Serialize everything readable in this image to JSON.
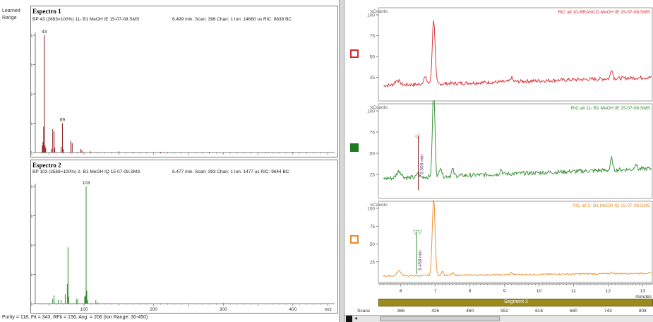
{
  "left": {
    "side_labels": [
      "Learned",
      "Range"
    ],
    "spectrum1": {
      "title": "Espectro 1",
      "info": "BP 43 (2693=100%) 11- B1 MeOH IE 15-07-08.SMS",
      "info2": "6.499 min. Scan: 396 Chan: 1 Ion: 14660 us RIC: 8838 BC",
      "peak_labels": [
        {
          "text": "43",
          "x": 43
        },
        {
          "text": "69",
          "x": 69
        }
      ],
      "y_ticks": [
        "100%",
        "75%",
        "50%",
        "25%",
        "0%"
      ],
      "peaks": [
        [
          40,
          6
        ],
        [
          41,
          9
        ],
        [
          42,
          22
        ],
        [
          43,
          100
        ],
        [
          44,
          6
        ],
        [
          45,
          4
        ],
        [
          53,
          3
        ],
        [
          55,
          20
        ],
        [
          57,
          18
        ],
        [
          58,
          4
        ],
        [
          67,
          5
        ],
        [
          69,
          25
        ],
        [
          70,
          3
        ],
        [
          81,
          10
        ],
        [
          83,
          8
        ],
        [
          95,
          3
        ],
        [
          97,
          2
        ],
        [
          109,
          1
        ],
        [
          150,
          1
        ],
        [
          172,
          0.5
        ],
        [
          210,
          0.5
        ],
        [
          280,
          0.5
        ],
        [
          365,
          0.5
        ],
        [
          400,
          0.5
        ]
      ],
      "color": "#8b1a1a"
    },
    "spectrum2": {
      "title": "Espectro 2",
      "info": "BP 103 (3569=100%) 2- B1 MeOH IQ 15-07-08.SMS",
      "info2": "6.477 min. Scan: 393 Chan: 1 Ion: 1477 us RIC: 9644 BC",
      "peak_labels": [
        {
          "text": "103",
          "x": 103
        }
      ],
      "y_ticks": [
        "100%",
        "75%",
        "50%",
        "25%",
        "0%"
      ],
      "x_ticks": [
        "100",
        "200",
        "300",
        "400"
      ],
      "x_unit": "m/z",
      "peaks": [
        [
          55,
          4
        ],
        [
          57,
          7
        ],
        [
          63,
          3
        ],
        [
          67,
          3
        ],
        [
          73,
          8
        ],
        [
          76,
          17
        ],
        [
          77,
          48
        ],
        [
          78,
          6
        ],
        [
          89,
          4
        ],
        [
          91,
          4
        ],
        [
          101,
          6
        ],
        [
          102,
          7
        ],
        [
          103,
          100
        ],
        [
          104,
          11
        ],
        [
          105,
          3
        ],
        [
          117,
          3
        ],
        [
          120,
          1
        ],
        [
          300,
          0.5
        ]
      ],
      "color": "#2e8b2e"
    },
    "footer": "Purity = 118, Fit = 343, RFit = 156, Avg. = 206 (Ion Range: 30-450)"
  },
  "right": {
    "y_label": "kCounts",
    "y_ticks": [
      "100",
      "75",
      "50",
      "25"
    ],
    "traces": [
      {
        "title": "RIC all 10-BRANCO MeOH IE 15-07-08.SMS",
        "color": "#d9262c",
        "swatch": "hollow",
        "baseline": 15,
        "noise": 2.2,
        "drift": 10,
        "peaks": [
          [
            5.9,
            6,
            0.07
          ],
          [
            6.7,
            8,
            0.05
          ],
          [
            6.95,
            78,
            0.04
          ],
          [
            9.2,
            5,
            0.03
          ],
          [
            12.1,
            12,
            0.03
          ]
        ]
      },
      {
        "title": "RIC all 11- B1 MeOH IE 15-07-08.SMS",
        "color": "#2e8b2e",
        "swatch": "filled",
        "marker_label": "6.506 min",
        "marker_time": 6.506,
        "marker_symbol": "◁",
        "baseline": 20,
        "noise": 2.5,
        "drift": 12,
        "peaks": [
          [
            5.95,
            8,
            0.07
          ],
          [
            6.5,
            6,
            0.03
          ],
          [
            6.95,
            106,
            0.035
          ],
          [
            7.15,
            12,
            0.03
          ],
          [
            7.5,
            8,
            0.03
          ],
          [
            8.9,
            6,
            0.03
          ],
          [
            12.1,
            14,
            0.03
          ],
          [
            12.8,
            7,
            0.03
          ]
        ]
      },
      {
        "title": "RIC all 2- B1 MeOH IQ 15-07-08.SMS",
        "color": "#f08a24",
        "swatch": "hollow",
        "marker_label": "6.458 min",
        "marker_time": 6.458,
        "marker_symbol": "▽▽",
        "baseline": 5,
        "noise": 1.0,
        "drift": 4,
        "peaks": [
          [
            5.95,
            7,
            0.06
          ],
          [
            6.95,
            110,
            0.04
          ],
          [
            7.2,
            6,
            0.03
          ],
          [
            7.5,
            3,
            0.03
          ],
          [
            9.2,
            3,
            0.03
          ],
          [
            12.1,
            2,
            0.03
          ]
        ]
      }
    ],
    "x_unit": "minutes",
    "x_ticks": [
      "6",
      "7",
      "8",
      "9",
      "10",
      "11",
      "12",
      "13"
    ],
    "segment_label": "Segment 2",
    "scans_label": "Scans",
    "scans": [
      "366",
      "426",
      "460",
      "552",
      "616",
      "680",
      "743",
      "808"
    ]
  }
}
